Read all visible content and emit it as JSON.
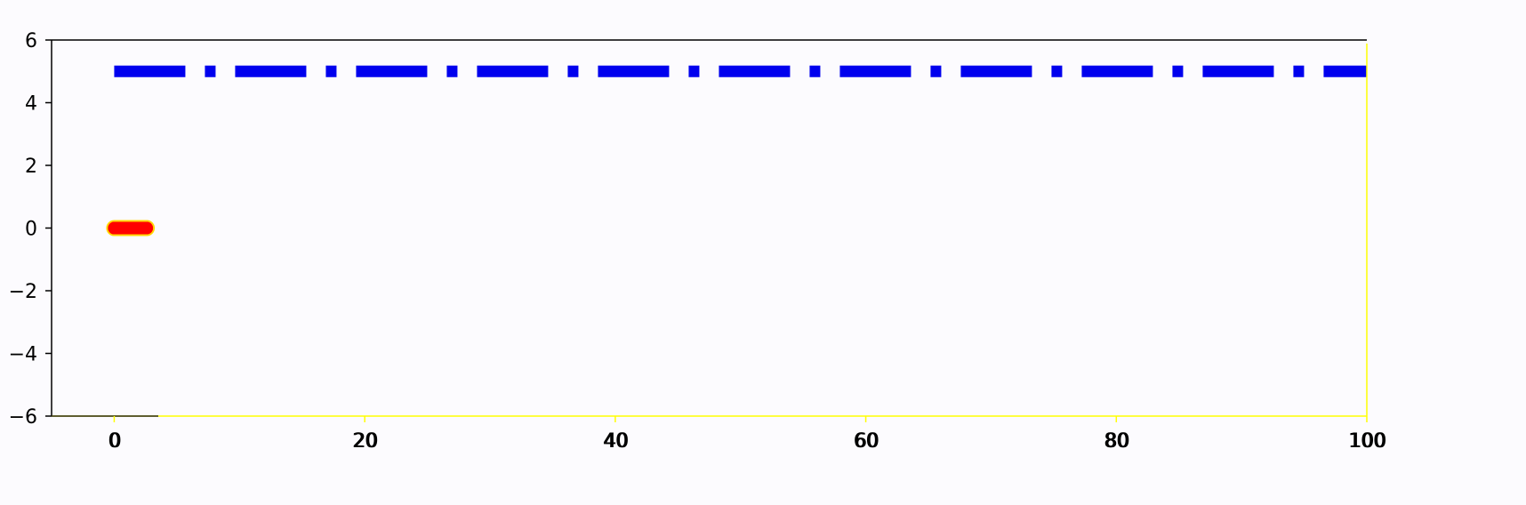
{
  "chart_data": {
    "type": "line",
    "title": "",
    "xlabel": "",
    "ylabel": "",
    "xlim": [
      -5,
      100
    ],
    "ylim": [
      -6,
      6
    ],
    "xticks": [
      0,
      20,
      40,
      60,
      80,
      100
    ],
    "yticks": [
      -6,
      -4,
      -2,
      0,
      2,
      4,
      6
    ],
    "grid": false,
    "series": [
      {
        "line_style": "dash-dot",
        "color": "#0000ee",
        "x": [
          0,
          100
        ],
        "y": [
          5,
          5
        ]
      },
      {
        "line_style": "solid-round",
        "color": "#ff0000",
        "edge_color": "#ffd700",
        "x": [
          0,
          2.6
        ],
        "y": [
          0,
          0
        ]
      }
    ]
  },
  "colors": {
    "background": "#fcfbfe",
    "axis_left_top": "#000000",
    "axis_right_bottom": "#ffff00",
    "ytick_text": "#000000",
    "xtick_text": "#000000",
    "xtick_shadow": "#ffff00"
  }
}
